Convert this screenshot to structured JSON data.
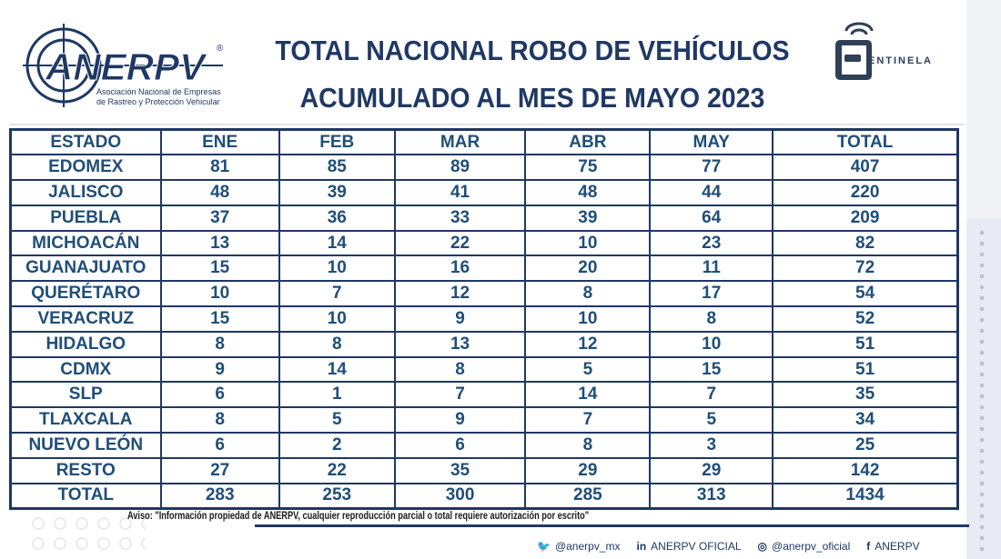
{
  "header": {
    "title_line1": "TOTAL NACIONAL ROBO DE VEHÍCULOS",
    "title_line2": "ACUMULADO AL MES DE MAYO 2023"
  },
  "logos": {
    "left": {
      "name": "ANERPV",
      "subtitle1": "Asociación Nacional de Empresas",
      "subtitle2": "de Rastreo y Protección Vehicular"
    },
    "right": {
      "name": "CENTINELA"
    }
  },
  "table": {
    "headers": [
      "ESTADO",
      "ENE",
      "FEB",
      "MAR",
      "ABR",
      "MAY",
      "TOTAL"
    ],
    "rows": [
      [
        "EDOMEX",
        "81",
        "85",
        "89",
        "75",
        "77",
        "407"
      ],
      [
        "JALISCO",
        "48",
        "39",
        "41",
        "48",
        "44",
        "220"
      ],
      [
        "PUEBLA",
        "37",
        "36",
        "33",
        "39",
        "64",
        "209"
      ],
      [
        "MICHOACÁN",
        "13",
        "14",
        "22",
        "10",
        "23",
        "82"
      ],
      [
        "GUANAJUATO",
        "15",
        "10",
        "16",
        "20",
        "11",
        "72"
      ],
      [
        "QUERÉTARO",
        "10",
        "7",
        "12",
        "8",
        "17",
        "54"
      ],
      [
        "VERACRUZ",
        "15",
        "10",
        "9",
        "10",
        "8",
        "52"
      ],
      [
        "HIDALGO",
        "8",
        "8",
        "13",
        "12",
        "10",
        "51"
      ],
      [
        "CDMX",
        "9",
        "14",
        "8",
        "5",
        "15",
        "51"
      ],
      [
        "SLP",
        "6",
        "1",
        "7",
        "14",
        "7",
        "35"
      ],
      [
        "TLAXCALA",
        "8",
        "5",
        "9",
        "7",
        "5",
        "34"
      ],
      [
        "NUEVO LEÓN",
        "6",
        "2",
        "6",
        "8",
        "3",
        "25"
      ],
      [
        "RESTO",
        "27",
        "22",
        "35",
        "29",
        "29",
        "142"
      ],
      [
        "TOTAL",
        "283",
        "253",
        "300",
        "285",
        "313",
        "1434"
      ]
    ]
  },
  "footer": {
    "aviso": "Aviso: \"Información propiedad de ANERPV, cualquier reproducción parcial o total requiere autorización por escrito\"",
    "social": [
      {
        "icon": "twitter-icon",
        "label": "@anerpv_mx"
      },
      {
        "icon": "linkedin-icon",
        "label": "ANERPV OFICIAL"
      },
      {
        "icon": "instagram-icon",
        "label": "@anerpv_oficial"
      },
      {
        "icon": "facebook-icon",
        "label": "ANERPV"
      }
    ]
  },
  "colors": {
    "navy": "#1f3864",
    "text": "#1f4e79"
  }
}
